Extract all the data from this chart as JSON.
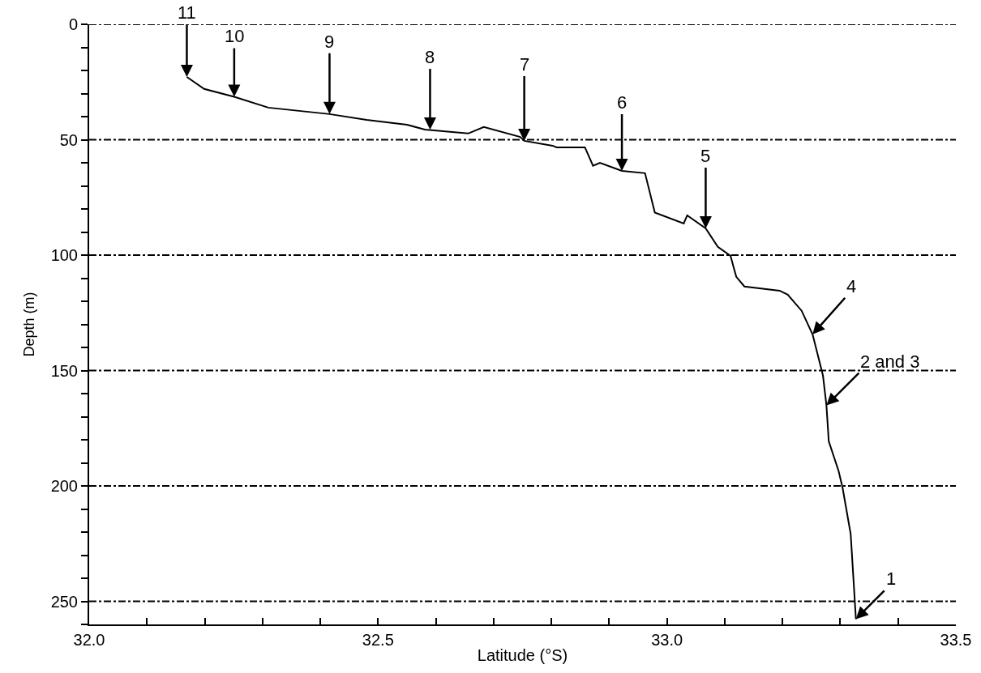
{
  "chart_data": {
    "type": "line",
    "xlabel": "Latitude (°S)",
    "ylabel": "Depth (m)",
    "xlim": [
      32.0,
      33.5
    ],
    "ylim": [
      260,
      0
    ],
    "xticks": [
      {
        "value": 32.0,
        "label": "32.0"
      },
      {
        "value": 32.1,
        "label": null
      },
      {
        "value": 32.2,
        "label": null
      },
      {
        "value": 32.3,
        "label": null
      },
      {
        "value": 32.4,
        "label": null
      },
      {
        "value": 32.5,
        "label": "32.5"
      },
      {
        "value": 32.6,
        "label": null
      },
      {
        "value": 32.7,
        "label": null
      },
      {
        "value": 32.8,
        "label": null
      },
      {
        "value": 32.9,
        "label": null
      },
      {
        "value": 33.0,
        "label": "33.0"
      },
      {
        "value": 33.1,
        "label": null
      },
      {
        "value": 33.2,
        "label": null
      },
      {
        "value": 33.3,
        "label": null
      },
      {
        "value": 33.4,
        "label": null
      },
      {
        "value": 33.5,
        "label": "33.5"
      }
    ],
    "yticks": [
      0,
      {
        "value": 10,
        "label": null
      },
      {
        "value": 20,
        "label": null
      },
      {
        "value": 30,
        "label": null
      },
      {
        "value": 40,
        "label": null
      },
      50,
      {
        "value": 60,
        "label": null
      },
      {
        "value": 70,
        "label": null
      },
      {
        "value": 80,
        "label": null
      },
      {
        "value": 90,
        "label": null
      },
      100,
      {
        "value": 110,
        "label": null
      },
      {
        "value": 120,
        "label": null
      },
      {
        "value": 130,
        "label": null
      },
      {
        "value": 140,
        "label": null
      },
      150,
      {
        "value": 160,
        "label": null
      },
      {
        "value": 170,
        "label": null
      },
      {
        "value": 180,
        "label": null
      },
      {
        "value": 190,
        "label": null
      },
      200,
      {
        "value": 210,
        "label": null
      },
      {
        "value": 220,
        "label": null
      },
      {
        "value": 230,
        "label": null
      },
      {
        "value": 240,
        "label": null
      },
      250,
      {
        "value": 260,
        "label": null
      }
    ],
    "grid": "y",
    "marker": "none",
    "line_style": "solid",
    "series": [
      {
        "color": "#000000",
        "x": [
          32.169,
          32.199,
          32.251,
          32.31,
          32.416,
          32.48,
          32.55,
          32.581,
          32.656,
          32.683,
          32.746,
          32.753,
          32.802,
          32.809,
          32.858,
          32.872,
          32.884,
          32.922,
          32.962,
          32.979,
          33.029,
          33.035,
          33.067,
          33.088,
          33.11,
          33.116,
          33.12,
          33.134,
          33.195,
          33.209,
          33.233,
          33.252,
          33.27,
          33.276,
          33.28,
          33.297,
          33.304,
          33.318,
          33.327
        ],
        "values": [
          22.8,
          28,
          31.4,
          36.1,
          38.9,
          41.4,
          43.5,
          45.6,
          47.3,
          44.5,
          48.8,
          50.5,
          52.6,
          53.3,
          53.3,
          61.3,
          60,
          63.5,
          64.5,
          81.6,
          86.3,
          82.8,
          88.4,
          96.4,
          100.3,
          105.9,
          109.4,
          113.6,
          115.4,
          117.1,
          124.1,
          134.3,
          152.2,
          165.1,
          180.6,
          193.5,
          200.9,
          220.9,
          257.7
        ]
      }
    ],
    "annotations": [
      {
        "text": "11",
        "x": 32.169,
        "y": 22.8
      },
      {
        "text": "10",
        "x": 32.251,
        "y": 31.4
      },
      {
        "text": "9",
        "x": 32.416,
        "y": 38.9
      },
      {
        "text": "8",
        "x": 32.59,
        "y": 45.6
      },
      {
        "text": "7",
        "x": 32.753,
        "y": 50.5
      },
      {
        "text": "6",
        "x": 32.922,
        "y": 63.5
      },
      {
        "text": "5",
        "x": 33.067,
        "y": 88.4
      },
      {
        "text": "4",
        "x": 33.252,
        "y": 134.3
      },
      {
        "text": "2 and 3",
        "x": 33.276,
        "y": 165.1
      },
      {
        "text": "1",
        "x": 33.327,
        "y": 257.7
      }
    ]
  }
}
